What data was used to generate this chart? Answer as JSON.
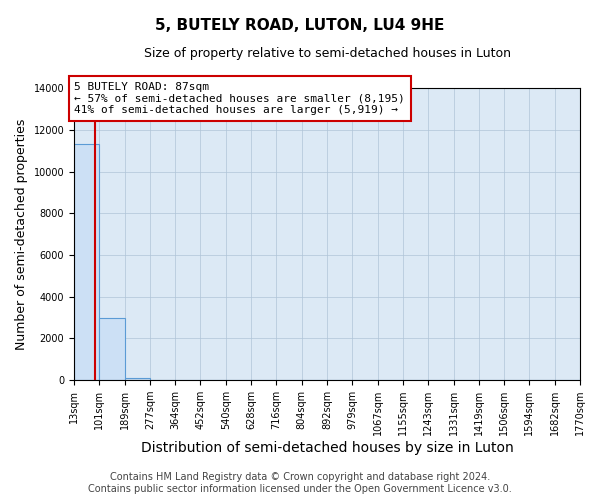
{
  "title": "5, BUTELY ROAD, LUTON, LU4 9HE",
  "subtitle": "Size of property relative to semi-detached houses in Luton",
  "xlabel": "Distribution of semi-detached houses by size in Luton",
  "ylabel": "Number of semi-detached properties",
  "bin_edges": [
    13,
    101,
    189,
    277,
    364,
    452,
    540,
    628,
    716,
    804,
    892,
    979,
    1067,
    1155,
    1243,
    1331,
    1419,
    1506,
    1594,
    1682,
    1770
  ],
  "bin_labels": [
    "13sqm",
    "101sqm",
    "189sqm",
    "277sqm",
    "364sqm",
    "452sqm",
    "540sqm",
    "628sqm",
    "716sqm",
    "804sqm",
    "892sqm",
    "979sqm",
    "1067sqm",
    "1155sqm",
    "1243sqm",
    "1331sqm",
    "1419sqm",
    "1506sqm",
    "1594sqm",
    "1682sqm",
    "1770sqm"
  ],
  "bar_heights": [
    11300,
    3000,
    100,
    0,
    0,
    0,
    0,
    0,
    0,
    0,
    0,
    0,
    0,
    0,
    0,
    0,
    0,
    0,
    0,
    0
  ],
  "bar_color": "#cce0f5",
  "bar_edge_color": "#5b9bd5",
  "property_size": 87,
  "annotation_line1": "5 BUTELY ROAD: 87sqm",
  "annotation_line2": "← 57% of semi-detached houses are smaller (8,195)",
  "annotation_line3": "41% of semi-detached houses are larger (5,919) →",
  "vline_color": "#cc0000",
  "ylim": [
    0,
    14000
  ],
  "yticks": [
    0,
    2000,
    4000,
    6000,
    8000,
    10000,
    12000,
    14000
  ],
  "footer_line1": "Contains HM Land Registry data © Crown copyright and database right 2024.",
  "footer_line2": "Contains public sector information licensed under the Open Government Licence v3.0.",
  "background_color": "#ffffff",
  "plot_bg_color": "#dce9f5",
  "grid_color": "#b0c4d8",
  "annotation_box_color": "#ffffff",
  "annotation_box_edge": "#cc0000",
  "title_fontsize": 11,
  "subtitle_fontsize": 9,
  "axis_label_fontsize": 9,
  "tick_fontsize": 7,
  "annotation_fontsize": 8,
  "footer_fontsize": 7
}
